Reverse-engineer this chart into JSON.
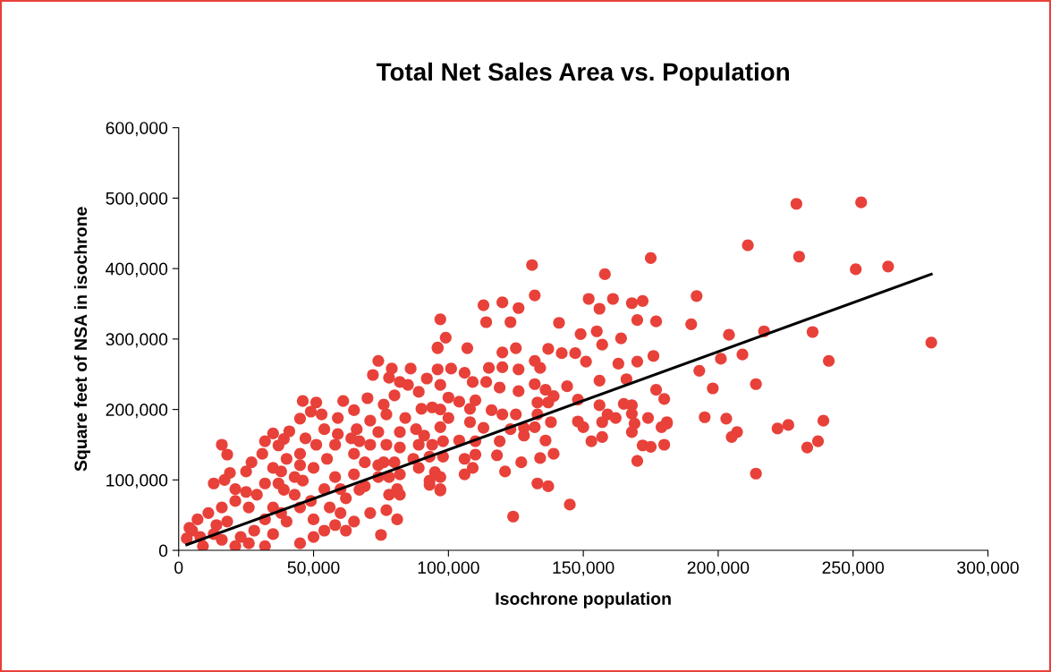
{
  "chart_data": {
    "type": "scatter",
    "title": "Total Net Sales Area vs. Population",
    "xlabel": "Isochrone population",
    "ylabel": "Square feet of NSA in isochrone",
    "xlim": [
      0,
      300000
    ],
    "ylim": [
      0,
      600000
    ],
    "xticks": [
      0,
      {
        "value": 50000,
        "label": "50,000"
      },
      {
        "value": 100000,
        "label": "100,000"
      },
      {
        "value": 150000,
        "label": "150,000"
      },
      {
        "value": 200000,
        "label": "200,000"
      },
      {
        "value": 250000,
        "label": "250,000"
      },
      {
        "value": 300000,
        "label": "300,000"
      }
    ],
    "yticks": [
      0,
      {
        "value": 100000,
        "label": "100,000"
      },
      {
        "value": 200000,
        "label": "200,000"
      },
      {
        "value": 300000,
        "label": "300,000"
      },
      {
        "value": 400000,
        "label": "400,000"
      },
      {
        "value": 500000,
        "label": "500,000"
      },
      {
        "value": 600000,
        "label": "600,000"
      }
    ],
    "series": [
      {
        "marker": "circle",
        "color": "#e8413a",
        "x": [
          253000,
          229000,
          211000,
          230000,
          251000,
          263000,
          192000,
          190000,
          204000,
          217000,
          235000,
          279000,
          241000,
          201000,
          209000,
          193000,
          198000,
          214000,
          180000,
          195000,
          203000,
          181000,
          207000,
          205000,
          222000,
          226000,
          239000,
          233000,
          237000,
          180000,
          214000,
          131000,
          175000,
          158000,
          132000,
          113000,
          120000,
          126000,
          152000,
          161000,
          168000,
          172000,
          156000,
          97000,
          114000,
          123000,
          141000,
          170000,
          177000,
          99000,
          96000,
          107000,
          149000,
          155000,
          164000,
          157000,
          137000,
          120000,
          125000,
          132000,
          134000,
          142000,
          147000,
          151000,
          163000,
          170000,
          176000,
          115000,
          120000,
          126000,
          101000,
          106000,
          109000,
          97000,
          114000,
          119000,
          132000,
          144000,
          156000,
          166000,
          177000,
          126000,
          136000,
          100000,
          104000,
          110000,
          139000,
          148000,
          156000,
          165000,
          168000,
          116000,
          133000,
          137000,
          97000,
          108000,
          120000,
          125000,
          159000,
          162000,
          168000,
          174000,
          133000,
          100000,
          157000,
          169000,
          181000,
          148000,
          150000,
          108000,
          113000,
          123000,
          128000,
          132000,
          138000,
          168000,
          179000,
          128000,
          136000,
          153000,
          157000,
          172000,
          175000,
          110000,
          119000,
          98000,
          104000,
          110000,
          118000,
          134000,
          139000,
          98000,
          106000,
          170000,
          109000,
          127000,
          121000,
          106000,
          97000,
          97000,
          133000,
          137000,
          145000,
          124000,
          16000,
          18000,
          13000,
          17000,
          19000,
          25000,
          27000,
          31000,
          32000,
          35000,
          37000,
          39000,
          41000,
          46000,
          45000,
          49000,
          51000,
          53000,
          54000,
          61000,
          59000,
          59000,
          65000,
          70000,
          74000,
          72000,
          79000,
          78000,
          86000,
          92000,
          96000,
          96000,
          82000,
          85000,
          80000,
          89000,
          90000,
          94000,
          76000,
          77000,
          84000,
          71000,
          66000,
          74000,
          82000,
          88000,
          91000,
          97000,
          94000,
          89000,
          82000,
          77000,
          71000,
          67000,
          65000,
          69000,
          74000,
          80000,
          87000,
          93000,
          95000,
          93000,
          97000,
          74000,
          78000,
          82000,
          78000,
          77000,
          81000,
          75000,
          71000,
          65000,
          60000,
          62000,
          67000,
          58000,
          54000,
          45000,
          40000,
          50000,
          49000,
          54000,
          58000,
          46000,
          43000,
          37000,
          35000,
          32000,
          28000,
          26000,
          23000,
          18000,
          14000,
          8000,
          5000,
          3000,
          9000,
          16000,
          21000,
          25000,
          11000,
          7000,
          16000,
          29000,
          32000,
          39000,
          38000,
          43000,
          45000,
          50000,
          55000,
          58000,
          64000,
          51000,
          47000,
          45000,
          40000,
          35000,
          21000,
          26000,
          38000,
          45000,
          56000,
          60000,
          65000,
          69000,
          76000,
          82000,
          89000,
          93000,
          81000,
          62000,
          50000,
          35000,
          32000,
          21000,
          13000,
          4000
        ],
        "values": [
          494000,
          492000,
          433000,
          417000,
          399000,
          403000,
          361000,
          321000,
          306000,
          311000,
          310000,
          295000,
          269000,
          272000,
          278000,
          255000,
          230000,
          236000,
          215000,
          189000,
          187000,
          182000,
          168000,
          161000,
          173000,
          178000,
          184000,
          146000,
          155000,
          150000,
          109000,
          405000,
          415000,
          392000,
          362000,
          348000,
          352000,
          344000,
          357000,
          357000,
          351000,
          354000,
          343000,
          328000,
          324000,
          324000,
          323000,
          327000,
          325000,
          302000,
          287000,
          287000,
          307000,
          311000,
          301000,
          292000,
          286000,
          281000,
          287000,
          269000,
          259000,
          280000,
          280000,
          268000,
          265000,
          268000,
          276000,
          259000,
          260000,
          257000,
          258000,
          252000,
          239000,
          235000,
          239000,
          231000,
          236000,
          233000,
          241000,
          243000,
          228000,
          226000,
          228000,
          217000,
          211000,
          213000,
          219000,
          214000,
          206000,
          208000,
          206000,
          199000,
          210000,
          210000,
          200000,
          201000,
          193000,
          193000,
          193000,
          188000,
          194000,
          188000,
          193000,
          188000,
          182000,
          180000,
          180000,
          183000,
          175000,
          182000,
          174000,
          172000,
          174000,
          175000,
          182000,
          168000,
          175000,
          163000,
          156000,
          155000,
          161000,
          149000,
          147000,
          155000,
          155000,
          155000,
          156000,
          136000,
          135000,
          131000,
          137000,
          133000,
          130000,
          127000,
          117000,
          125000,
          112000,
          108000,
          104000,
          85000,
          95000,
          91000,
          65000,
          48000,
          150000,
          136000,
          95000,
          100000,
          110000,
          112000,
          125000,
          137000,
          155000,
          166000,
          149000,
          158000,
          169000,
          212000,
          187000,
          197000,
          210000,
          193000,
          172000,
          212000,
          188000,
          165000,
          199000,
          216000,
          269000,
          249000,
          258000,
          245000,
          258000,
          244000,
          288000,
          257000,
          239000,
          235000,
          220000,
          225000,
          201000,
          203000,
          207000,
          193000,
          188000,
          184000,
          172000,
          168000,
          168000,
          172000,
          163000,
          175000,
          150000,
          150000,
          146000,
          150000,
          150000,
          155000,
          137000,
          125000,
          121000,
          125000,
          130000,
          133000,
          111000,
          93000,
          87000,
          104000,
          104000,
          79000,
          79000,
          57000,
          44000,
          22000,
          53000,
          41000,
          53000,
          74000,
          86000,
          36000,
          28000,
          10000,
          41000,
          44000,
          70000,
          87000,
          104000,
          99000,
          79000,
          95000,
          61000,
          44000,
          28000,
          10000,
          19000,
          41000,
          36000,
          19000,
          28000,
          17000,
          6000,
          15000,
          70000,
          83000,
          53000,
          44000,
          61000,
          79000,
          95000,
          86000,
          112000,
          104000,
          121000,
          117000,
          130000,
          150000,
          159000,
          150000,
          159000,
          137000,
          130000,
          117000,
          87000,
          61000,
          53000,
          61000,
          61000,
          87000,
          108000,
          91000,
          125000,
          108000,
          117000,
          99000,
          87000,
          28000,
          19000,
          23000,
          6000,
          6000,
          23000,
          32000
        ]
      },
      {
        "type": "line",
        "color": "#000000",
        "x": [
          3000,
          279000
        ],
        "values": [
          8000,
          392000
        ]
      }
    ]
  }
}
